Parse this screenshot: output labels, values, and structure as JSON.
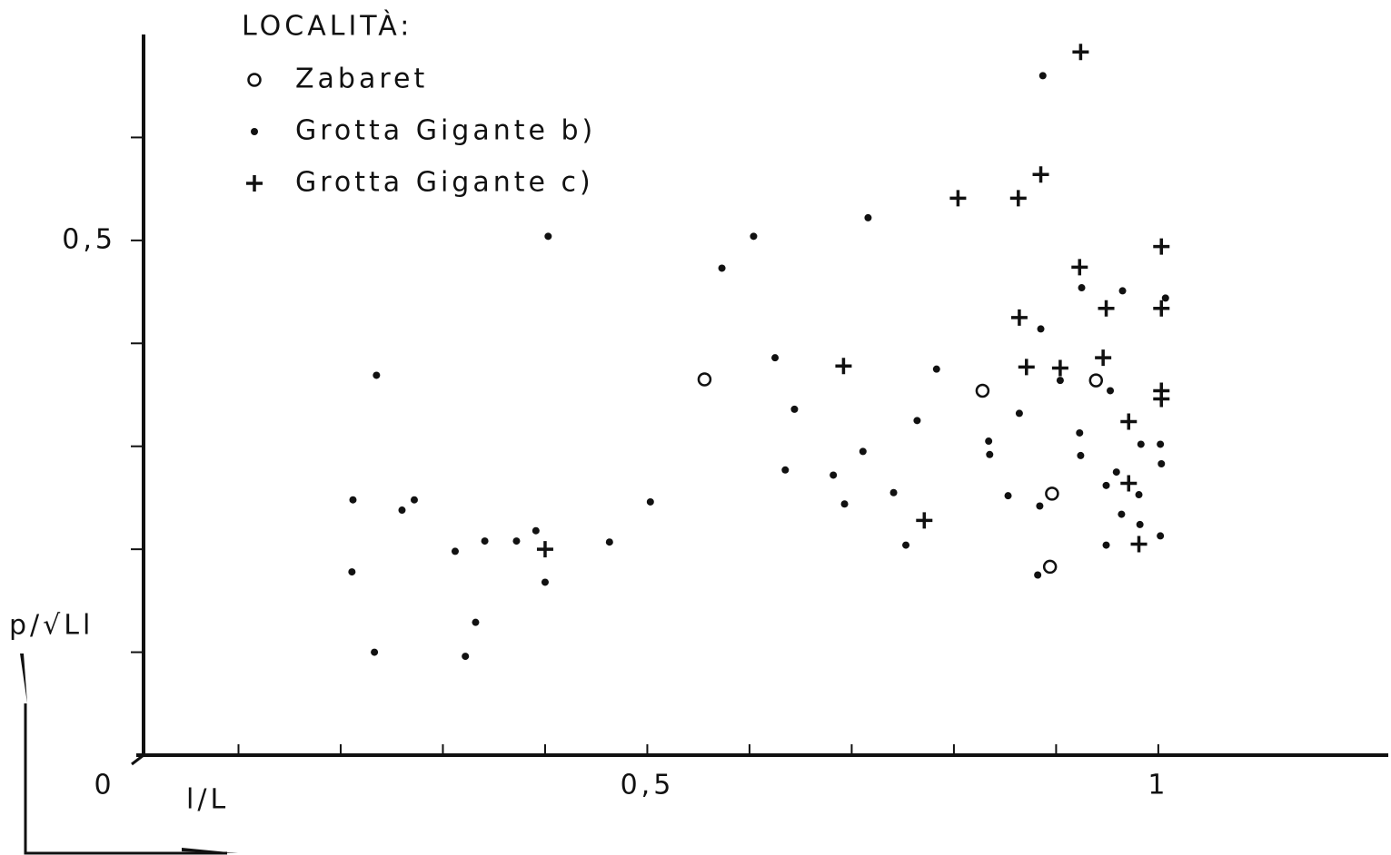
{
  "chart_data": {
    "type": "scatter",
    "legend_title": "LOCALITÀ:",
    "xlabel": "l/L",
    "ylabel": "p/√Ll",
    "xlim": [
      0,
      1.225
    ],
    "ylim": [
      0,
      0.7
    ],
    "xticks": [
      {
        "value": 0,
        "label": "0"
      },
      {
        "value": 0.5,
        "label": "0,5"
      },
      1
    ],
    "yticks": [
      {
        "value": 0.5,
        "label": "0,5"
      }
    ],
    "xminor_ticks": [
      0.1,
      0.2,
      0.3,
      0.4,
      0.5,
      0.6,
      0.7,
      0.8,
      0.9,
      1
    ],
    "yminor_ticks": [
      0.1,
      0.2,
      0.3,
      0.4,
      0.5,
      0.6
    ],
    "legend": "upper left",
    "series": [
      {
        "name": "Zabaret",
        "color": "#111111",
        "marker": "circle",
        "x": [
          0.556,
          0.828,
          0.939,
          0.896,
          0.894
        ],
        "values": [
          0.365,
          0.354,
          0.364,
          0.254,
          0.183
        ]
      },
      {
        "name": "Grotta Gigante b)",
        "color": "#111111",
        "marker": "dot",
        "x": [
          0.235,
          0.212,
          0.211,
          0.233,
          0.26,
          0.272,
          0.312,
          0.322,
          0.332,
          0.341,
          0.372,
          0.391,
          0.4,
          0.403,
          0.463,
          0.503,
          0.573,
          0.604,
          0.625,
          0.635,
          0.644,
          0.682,
          0.693,
          0.711,
          0.716,
          0.741,
          0.753,
          0.764,
          0.783,
          0.834,
          0.835,
          0.853,
          0.864,
          0.882,
          0.884,
          0.887,
          0.885,
          0.904,
          0.923,
          0.924,
          0.925,
          0.965,
          0.953,
          0.949,
          0.959,
          0.964,
          0.949,
          0.981,
          0.983,
          0.982,
          1.002,
          1.003,
          1.002,
          1.007
        ],
        "values": [
          0.369,
          0.248,
          0.178,
          0.1,
          0.238,
          0.248,
          0.198,
          0.096,
          0.129,
          0.208,
          0.208,
          0.218,
          0.168,
          0.504,
          0.207,
          0.246,
          0.473,
          0.504,
          0.386,
          0.277,
          0.336,
          0.272,
          0.244,
          0.295,
          0.522,
          0.255,
          0.204,
          0.325,
          0.375,
          0.305,
          0.292,
          0.252,
          0.332,
          0.175,
          0.242,
          0.66,
          0.414,
          0.364,
          0.313,
          0.291,
          0.454,
          0.451,
          0.354,
          0.262,
          0.275,
          0.234,
          0.204,
          0.253,
          0.302,
          0.224,
          0.302,
          0.283,
          0.213,
          0.444
        ]
      },
      {
        "name": "Grotta Gigante c)",
        "color": "#111111",
        "marker": "plus",
        "x": [
          0.924,
          0.885,
          0.804,
          0.863,
          1.003,
          0.923,
          0.949,
          1.003,
          0.864,
          0.946,
          0.871,
          0.904,
          0.692,
          1.003,
          1.003,
          0.971,
          0.971,
          0.771,
          0.4,
          0.981
        ],
        "values": [
          0.683,
          0.564,
          0.541,
          0.541,
          0.494,
          0.474,
          0.434,
          0.434,
          0.425,
          0.386,
          0.377,
          0.376,
          0.378,
          0.354,
          0.346,
          0.324,
          0.264,
          0.228,
          0.2,
          0.205
        ]
      }
    ]
  }
}
